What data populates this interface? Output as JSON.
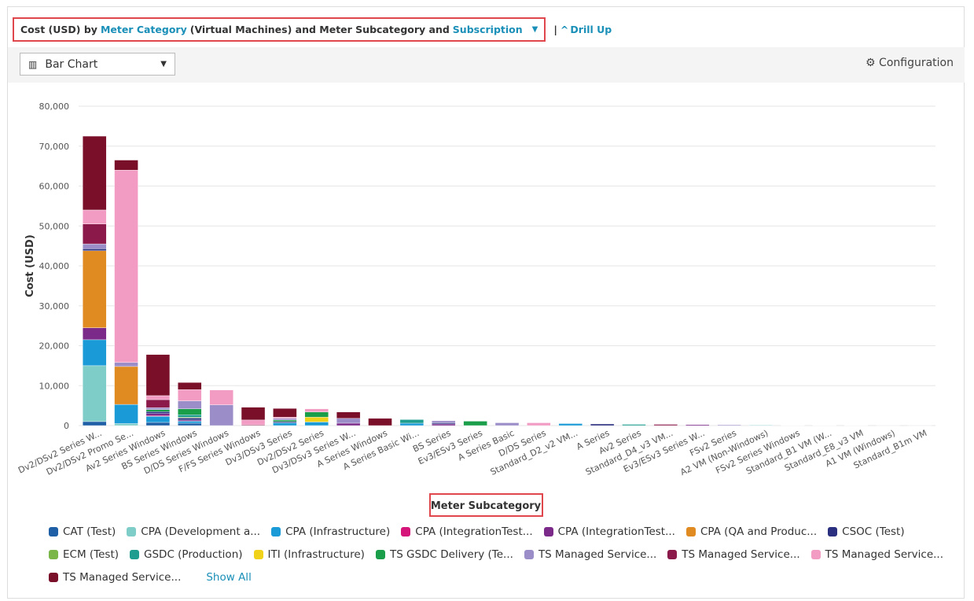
{
  "header": {
    "title_prefix": "Cost (USD) by",
    "category_link": "Meter Category",
    "title_middle": "(Virtual Machines) and Meter Subcategory and",
    "subscription_link": "Subscription",
    "drill_up": "Drill Up"
  },
  "toolbar": {
    "chart_type": "Bar Chart",
    "configuration": "Configuration"
  },
  "legend_more": "Show All",
  "chart_data": {
    "type": "stacked-bar",
    "y_label": "Cost (USD)",
    "x_label": "Meter Subcategory",
    "ylim": [
      0,
      80000
    ],
    "yticks": [
      0,
      {
        "value": 10000,
        "label": "10,000"
      },
      {
        "value": 20000,
        "label": "20,000"
      },
      {
        "value": 30000,
        "label": "30,000"
      },
      {
        "value": 40000,
        "label": "40,000"
      },
      {
        "value": 50000,
        "label": "50,000"
      },
      {
        "value": 60000,
        "label": "60,000"
      },
      {
        "value": 70000,
        "label": "70,000"
      },
      {
        "value": 80000,
        "label": "80,000"
      }
    ],
    "grid": true,
    "categories": [
      "Dv2/DSv2 Series W...",
      "Dv2/DSv2 Promo Se...",
      "Av2 Series Windows",
      "BS Series Windows",
      "D/DS Series Windows",
      "F/FS Series Windows",
      "Dv3/DSv3 Series",
      "Dv2/DSv2 Series",
      "Dv3/DSv3 Series W...",
      "A Series Windows",
      "A Series Basic Wi...",
      "BS Series",
      "Ev3/ESv3 Series",
      "A Series Basic",
      "D/DS Series",
      "Standard_D2_v2 VM...",
      "A Series",
      "Av2 Series",
      "Standard_D4_v3 VM...",
      "Ev3/ESv3 Series W...",
      "FSv2 Series",
      "A2 VM (Non-Windows)",
      "FSv2 Series Windows",
      "Standard_B1 VM (W...",
      "Standard_E8_v3 VM",
      "A1 VM (Windows)",
      "Standard_B1m VM"
    ],
    "series": [
      {
        "name": "CAT (Test)",
        "color": "#1f5fa6",
        "values": [
          1000,
          null,
          800,
          600,
          null,
          null,
          null,
          null,
          null,
          null,
          null,
          null,
          null,
          null,
          null,
          null,
          null,
          null,
          null,
          null,
          null,
          null,
          null,
          null,
          null,
          null,
          null
        ]
      },
      {
        "name": "CPA (Development a...",
        "color": "#7fcdc8",
        "values": [
          14000,
          500,
          null,
          null,
          null,
          null,
          null,
          null,
          null,
          null,
          null,
          null,
          null,
          null,
          null,
          null,
          null,
          null,
          null,
          null,
          null,
          150,
          null,
          null,
          null,
          null,
          null
        ]
      },
      {
        "name": "CPA (Infrastructure)",
        "color": "#1a9ad6",
        "values": [
          6500,
          4800,
          1500,
          500,
          null,
          null,
          700,
          900,
          null,
          null,
          600,
          null,
          null,
          null,
          null,
          500,
          null,
          null,
          null,
          null,
          null,
          null,
          null,
          null,
          40,
          null,
          null
        ]
      },
      {
        "name": "CPA (IntegrationTest...",
        "color": "#d6157a",
        "values": [
          null,
          null,
          200,
          null,
          null,
          null,
          null,
          null,
          null,
          null,
          null,
          null,
          null,
          null,
          null,
          null,
          null,
          null,
          null,
          null,
          null,
          null,
          null,
          null,
          null,
          null,
          null
        ]
      },
      {
        "name": "CPA (IntegrationTest...",
        "color": "#7b2a8a",
        "values": [
          3000,
          null,
          500,
          300,
          null,
          null,
          null,
          null,
          600,
          null,
          null,
          400,
          null,
          null,
          null,
          null,
          null,
          null,
          null,
          250,
          null,
          null,
          null,
          null,
          null,
          null,
          null
        ]
      },
      {
        "name": "CPA (QA and Produc...",
        "color": "#e08a22",
        "values": [
          19300,
          9500,
          null,
          null,
          null,
          null,
          null,
          null,
          null,
          null,
          null,
          null,
          null,
          null,
          null,
          null,
          null,
          null,
          null,
          null,
          null,
          null,
          null,
          null,
          null,
          null,
          null
        ]
      },
      {
        "name": "CSOC (Test)",
        "color": "#2a2f7f",
        "values": [
          500,
          null,
          500,
          500,
          null,
          null,
          300,
          null,
          null,
          null,
          null,
          300,
          null,
          null,
          null,
          null,
          400,
          null,
          null,
          null,
          null,
          null,
          null,
          null,
          null,
          null,
          null
        ]
      },
      {
        "name": "ECM (Test)",
        "color": "#7ab648",
        "values": [
          null,
          null,
          null,
          200,
          null,
          null,
          null,
          null,
          null,
          null,
          null,
          null,
          null,
          null,
          null,
          null,
          null,
          null,
          null,
          null,
          null,
          null,
          null,
          null,
          null,
          null,
          null
        ]
      },
      {
        "name": "GSDC (Production)",
        "color": "#1f9e8f",
        "values": [
          null,
          null,
          null,
          600,
          null,
          null,
          null,
          null,
          null,
          null,
          900,
          null,
          null,
          null,
          null,
          null,
          null,
          300,
          null,
          null,
          null,
          null,
          null,
          null,
          null,
          null,
          null
        ]
      },
      {
        "name": "ITI (Infrastructure)",
        "color": "#f0d21a",
        "values": [
          null,
          null,
          null,
          null,
          null,
          null,
          null,
          1200,
          null,
          null,
          null,
          null,
          null,
          null,
          null,
          null,
          null,
          null,
          null,
          null,
          null,
          null,
          null,
          null,
          null,
          null,
          null
        ]
      },
      {
        "name": "TS GSDC Delivery (Te...",
        "color": "#1a9e4a",
        "values": [
          null,
          null,
          500,
          1500,
          null,
          null,
          400,
          1300,
          null,
          null,
          null,
          null,
          1100,
          null,
          null,
          null,
          null,
          null,
          null,
          null,
          null,
          null,
          null,
          null,
          null,
          null,
          null
        ]
      },
      {
        "name": "TS Managed Service...",
        "color": "#9b8dc8",
        "values": [
          1200,
          1000,
          500,
          2000,
          5200,
          null,
          400,
          null,
          1200,
          null,
          null,
          500,
          null,
          700,
          null,
          null,
          null,
          null,
          null,
          null,
          200,
          null,
          80,
          null,
          null,
          30,
          20
        ]
      },
      {
        "name": "TS Managed Service...",
        "color": "#8b1a4a",
        "values": [
          5000,
          null,
          2000,
          null,
          null,
          200,
          null,
          null,
          null,
          null,
          null,
          null,
          null,
          null,
          null,
          null,
          null,
          null,
          300,
          null,
          null,
          null,
          null,
          null,
          null,
          null,
          null
        ]
      },
      {
        "name": "TS Managed Service...",
        "color": "#f29cc4",
        "values": [
          3500,
          48200,
          1000,
          2800,
          3700,
          1200,
          300,
          800,
          null,
          null,
          null,
          null,
          null,
          null,
          700,
          null,
          null,
          null,
          null,
          null,
          null,
          null,
          null,
          60,
          null,
          null,
          null
        ]
      },
      {
        "name": "TS Managed Service...",
        "color": "#7a0f2a",
        "values": [
          18500,
          2500,
          10300,
          1800,
          null,
          3200,
          2200,
          null,
          1600,
          1800,
          null,
          null,
          null,
          null,
          null,
          null,
          null,
          null,
          null,
          null,
          null,
          null,
          null,
          null,
          null,
          null,
          null
        ]
      }
    ]
  }
}
